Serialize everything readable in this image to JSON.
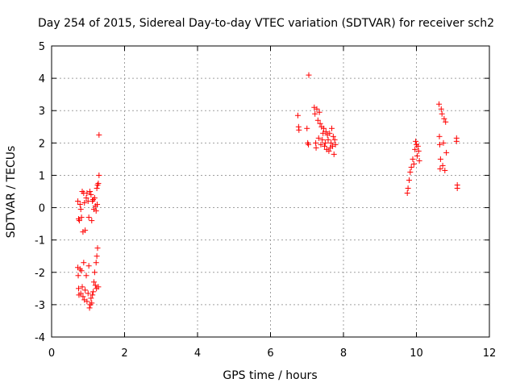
{
  "chart_data": {
    "type": "scatter",
    "title": "Day 254 of 2015, Sidereal Day-to-day VTEC variation (SDTVAR) for receiver sch2",
    "xlabel": "GPS time / hours",
    "ylabel": "SDTVAR / TECUs",
    "xlim": [
      0,
      12
    ],
    "ylim": [
      -4,
      5
    ],
    "xticks": [
      0,
      2,
      4,
      6,
      8,
      10,
      12
    ],
    "yticks": [
      -4,
      -3,
      -2,
      -1,
      0,
      1,
      2,
      3,
      4,
      5
    ],
    "grid": true,
    "marker": "+",
    "color": "#ff0000",
    "series": [
      {
        "name": "SDTVAR",
        "points": [
          [
            0.72,
            0.2
          ],
          [
            0.74,
            -0.35
          ],
          [
            0.76,
            -0.4
          ],
          [
            0.78,
            0.1
          ],
          [
            0.8,
            -0.05
          ],
          [
            0.82,
            -0.3
          ],
          [
            0.84,
            0.5
          ],
          [
            0.86,
            -0.75
          ],
          [
            0.88,
            0.45
          ],
          [
            0.9,
            0.15
          ],
          [
            0.92,
            -0.7
          ],
          [
            0.95,
            0.3
          ],
          [
            0.97,
            0.45
          ],
          [
            1.0,
            0.2
          ],
          [
            1.02,
            -0.3
          ],
          [
            1.05,
            0.5
          ],
          [
            1.08,
            0.4
          ],
          [
            1.1,
            -0.4
          ],
          [
            1.12,
            0.2
          ],
          [
            1.14,
            0.25
          ],
          [
            1.16,
            -0.05
          ],
          [
            1.18,
            0.3
          ],
          [
            1.2,
            0.05
          ],
          [
            1.22,
            -0.1
          ],
          [
            1.24,
            0.6
          ],
          [
            1.25,
            0.1
          ],
          [
            1.26,
            0.7
          ],
          [
            1.28,
            0.75
          ],
          [
            1.3,
            1.0
          ],
          [
            1.3,
            2.25
          ],
          [
            0.72,
            -1.85
          ],
          [
            0.73,
            -2.1
          ],
          [
            0.74,
            -2.5
          ],
          [
            0.75,
            -2.7
          ],
          [
            0.78,
            -1.9
          ],
          [
            0.8,
            -2.65
          ],
          [
            0.82,
            -1.95
          ],
          [
            0.84,
            -2.45
          ],
          [
            0.86,
            -2.75
          ],
          [
            0.88,
            -1.7
          ],
          [
            0.9,
            -2.85
          ],
          [
            0.92,
            -2.55
          ],
          [
            0.95,
            -2.1
          ],
          [
            0.97,
            -2.9
          ],
          [
            1.0,
            -2.65
          ],
          [
            1.02,
            -1.8
          ],
          [
            1.04,
            -3.1
          ],
          [
            1.06,
            -3.0
          ],
          [
            1.08,
            -2.8
          ],
          [
            1.1,
            -2.95
          ],
          [
            1.12,
            -2.7
          ],
          [
            1.14,
            -2.6
          ],
          [
            1.16,
            -2.3
          ],
          [
            1.18,
            -2.0
          ],
          [
            1.2,
            -2.4
          ],
          [
            1.22,
            -1.7
          ],
          [
            1.23,
            -2.5
          ],
          [
            1.24,
            -1.5
          ],
          [
            1.26,
            -1.25
          ],
          [
            1.28,
            -2.45
          ],
          [
            6.75,
            2.85
          ],
          [
            6.77,
            2.5
          ],
          [
            6.78,
            2.4
          ],
          [
            7.0,
            2.45
          ],
          [
            7.02,
            2.0
          ],
          [
            7.04,
            1.95
          ],
          [
            7.05,
            4.1
          ],
          [
            7.2,
            3.1
          ],
          [
            7.22,
            2.9
          ],
          [
            7.24,
            2.0
          ],
          [
            7.25,
            1.85
          ],
          [
            7.27,
            3.05
          ],
          [
            7.3,
            2.7
          ],
          [
            7.32,
            2.15
          ],
          [
            7.34,
            2.95
          ],
          [
            7.36,
            2.6
          ],
          [
            7.38,
            1.95
          ],
          [
            7.4,
            2.5
          ],
          [
            7.42,
            2.1
          ],
          [
            7.44,
            2.3
          ],
          [
            7.46,
            2.45
          ],
          [
            7.48,
            1.9
          ],
          [
            7.5,
            2.0
          ],
          [
            7.52,
            2.35
          ],
          [
            7.54,
            1.8
          ],
          [
            7.56,
            2.25
          ],
          [
            7.58,
            2.1
          ],
          [
            7.6,
            1.75
          ],
          [
            7.62,
            2.3
          ],
          [
            7.64,
            1.85
          ],
          [
            7.66,
            2.0
          ],
          [
            7.68,
            2.45
          ],
          [
            7.7,
            1.9
          ],
          [
            7.72,
            2.2
          ],
          [
            7.74,
            1.65
          ],
          [
            7.76,
            2.1
          ],
          [
            7.78,
            1.95
          ],
          [
            9.75,
            0.45
          ],
          [
            9.77,
            0.6
          ],
          [
            9.8,
            0.85
          ],
          [
            9.83,
            1.1
          ],
          [
            9.86,
            1.25
          ],
          [
            9.9,
            1.5
          ],
          [
            9.93,
            1.35
          ],
          [
            9.96,
            1.8
          ],
          [
            9.98,
            2.05
          ],
          [
            10.0,
            1.95
          ],
          [
            10.02,
            1.6
          ],
          [
            10.04,
            1.9
          ],
          [
            10.06,
            1.75
          ],
          [
            10.08,
            1.45
          ],
          [
            10.62,
            3.2
          ],
          [
            10.63,
            2.2
          ],
          [
            10.64,
            1.95
          ],
          [
            10.65,
            1.2
          ],
          [
            10.66,
            1.5
          ],
          [
            10.68,
            3.05
          ],
          [
            10.7,
            2.9
          ],
          [
            10.72,
            1.3
          ],
          [
            10.74,
            2.0
          ],
          [
            10.76,
            2.75
          ],
          [
            10.78,
            1.15
          ],
          [
            10.8,
            2.65
          ],
          [
            10.82,
            1.7
          ],
          [
            11.1,
            2.15
          ],
          [
            11.1,
            2.05
          ],
          [
            11.12,
            0.7
          ],
          [
            11.12,
            0.6
          ]
        ]
      }
    ]
  }
}
